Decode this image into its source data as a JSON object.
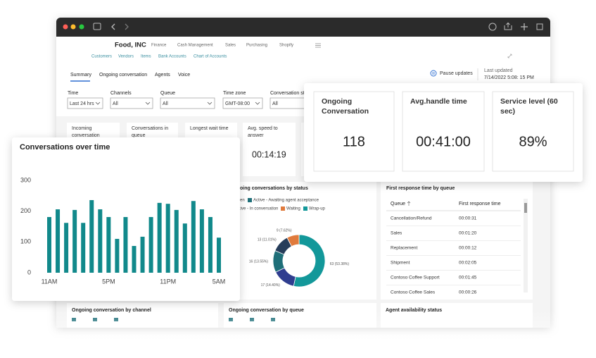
{
  "app": {
    "company": "Food, INC",
    "nav": [
      "Finance",
      "Cash Management",
      "Sales",
      "Purchasing",
      "Shopify"
    ],
    "subnav": [
      "Customers",
      "Vendors",
      "Items",
      "Bank Accounts",
      "Chart of Accounts"
    ]
  },
  "tabs": [
    "Summary",
    "Ongoing conversation",
    "Agents",
    "Voice"
  ],
  "status": {
    "pause": "Pause updates",
    "last_updated_label": "Last updated",
    "last_updated": "7/14/2022 5:08: 15 PM"
  },
  "filters": [
    {
      "label": "Time",
      "value": "Last 24 hrs"
    },
    {
      "label": "Channels",
      "value": "All"
    },
    {
      "label": "Queue",
      "value": "All"
    },
    {
      "label": "Time zone",
      "value": "GMT-08:00"
    },
    {
      "label": "Conversation status",
      "value": "All"
    }
  ],
  "kpis": [
    {
      "label": "Incoming conversation"
    },
    {
      "label": "Conversations in queue"
    },
    {
      "label": "Longest wait time"
    },
    {
      "label": "Avg. speed to answer",
      "value": "00:14:19"
    }
  ],
  "highlight_kpis": [
    {
      "label": "Ongoing Conversation",
      "value": "118"
    },
    {
      "label": "Avg.handle time",
      "value": "00:41:00"
    },
    {
      "label": "Service level (60 sec)",
      "value": "89%"
    }
  ],
  "chart_data": [
    {
      "type": "bar",
      "title": "Conversations over time",
      "categories": [
        "11AM",
        null,
        null,
        null,
        null,
        null,
        null,
        "5PM",
        null,
        null,
        null,
        null,
        null,
        null,
        "11PM",
        null,
        null,
        null,
        null,
        null,
        "5AM"
      ],
      "values": [
        181,
        206,
        162,
        204,
        162,
        236,
        206,
        181,
        110,
        181,
        87,
        117,
        181,
        227,
        224,
        204,
        160,
        233,
        206,
        181,
        114
      ],
      "color": "#11898b",
      "ylim": [
        0,
        300
      ],
      "yticks": [
        0,
        100,
        200,
        300
      ],
      "grid": false
    },
    {
      "type": "pie",
      "donut": true,
      "title": "Ongoing conversations by status",
      "categories": [
        "Open",
        "Active - Awaiting agent acceptance",
        "Active - In conversation",
        "Waiting",
        "Wrap-up"
      ],
      "values": [
        13,
        16,
        17,
        9,
        63
      ],
      "value_labels": [
        "13 (11.01%)",
        "16 (13.55%)",
        "17 (14.40%)",
        "9 (7.62%)",
        "63 (53.38%)"
      ],
      "colors": [
        "#263d5a",
        "#1f6f79",
        "#2f3d8f",
        "#e07a3c",
        "#13989a"
      ]
    }
  ],
  "queue_table": {
    "title": "First response time by queue",
    "columns": [
      "Queue",
      "First response time"
    ],
    "rows": [
      [
        "Cancellation/Refund",
        "00:00:31"
      ],
      [
        "Sales",
        "00:01:20"
      ],
      [
        "Replacement",
        "00:00:12"
      ],
      [
        "Shipment",
        "00:02:05"
      ],
      [
        "Contoso Coffee Support",
        "00:01:45"
      ],
      [
        "Contoso Coffee Sales",
        "00:00:26"
      ]
    ]
  },
  "panels": [
    "Ongoing conversation by channel",
    "Ongoing conversation by queue",
    "Agent availability status"
  ]
}
